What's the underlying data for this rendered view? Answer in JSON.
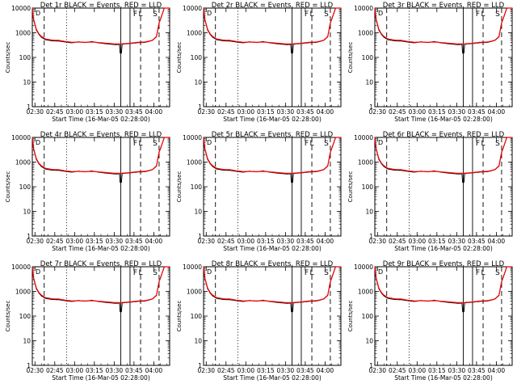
{
  "chart_data": {
    "type": "line",
    "layout": "3x3 grid",
    "scale": "log-y",
    "ylim": [
      1,
      10000
    ],
    "y_ticks": [
      "1",
      "10",
      "100",
      "1000",
      "10000"
    ],
    "ylabel": "Counts/sec",
    "xlabel": "Start Time (16-Mar-05 02:28:00)",
    "x_ticks": [
      "02:30",
      "02:45",
      "03:00",
      "03:15",
      "03:30",
      "03:45",
      "04:00"
    ],
    "x_tick_minutes": [
      2,
      17,
      32,
      47,
      62,
      77,
      92
    ],
    "xlim_minutes": [
      0,
      104
    ],
    "series_colors": {
      "events": "#000000",
      "lld": "#ff0000"
    },
    "markers": {
      "dashed_minutes": [
        9,
        82,
        96
      ],
      "dotted_minutes": [
        26
      ],
      "solid_minutes": [
        67,
        74
      ],
      "letters": [
        {
          "text": "F",
          "minute": 78
        },
        {
          "text": "L",
          "minute": 82
        },
        {
          "text": "S",
          "minute": 93
        }
      ]
    },
    "charts": [
      {
        "title": "Det 1r BLACK = Events, RED = LLD"
      },
      {
        "title": "Det 2r BLACK = Events, RED = LLD"
      },
      {
        "title": "Det 3r BLACK = Events, RED = LLD"
      },
      {
        "title": "Det 4r BLACK = Events, RED = LLD"
      },
      {
        "title": "Det 5r BLACK = Events, RED = LLD"
      },
      {
        "title": "Det 6r BLACK = Events, RED = LLD"
      },
      {
        "title": "Det 7r BLACK = Events, RED = LLD"
      },
      {
        "title": "Det 8r BLACK = Events, RED = LLD"
      },
      {
        "title": "Det 9r BLACK = Events, RED = LLD"
      }
    ],
    "profile_minutes": [
      0,
      1,
      3,
      5,
      7,
      10,
      15,
      20,
      25,
      30,
      35,
      40,
      45,
      50,
      55,
      60,
      63,
      66,
      70,
      75,
      80,
      85,
      88,
      91,
      94,
      96,
      100,
      104
    ],
    "red_profile": [
      10000,
      3500,
      1400,
      900,
      700,
      560,
      500,
      490,
      440,
      410,
      420,
      410,
      420,
      400,
      380,
      360,
      350,
      350,
      360,
      380,
      410,
      420,
      450,
      500,
      700,
      2500,
      10000,
      10000
    ],
    "black_profile": [
      10000,
      3300,
      1300,
      850,
      650,
      520,
      470,
      460,
      420,
      390,
      430,
      400,
      440,
      390,
      360,
      340,
      330,
      335,
      350,
      370,
      395,
      405,
      440,
      490,
      680,
      2400,
      10000,
      10000
    ],
    "black_dip": {
      "minute": 67,
      "value": 150
    }
  }
}
